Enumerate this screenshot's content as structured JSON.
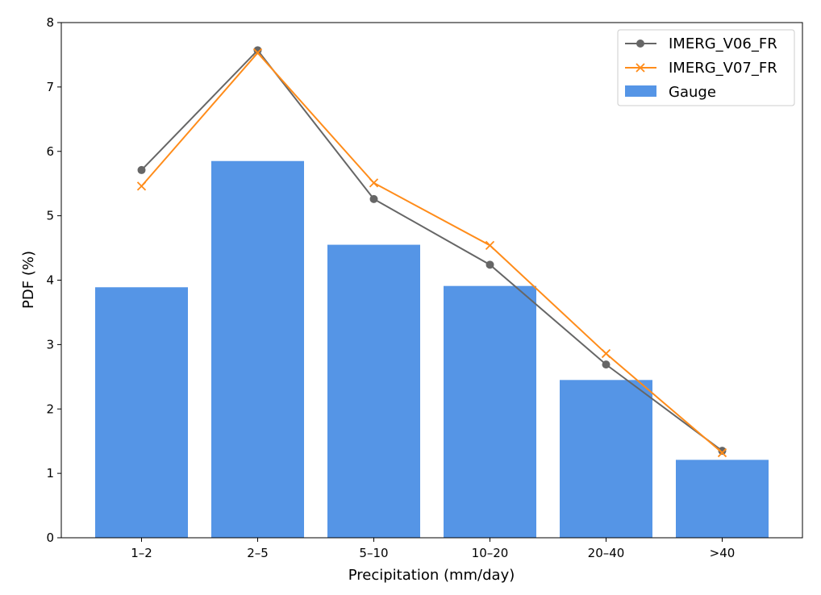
{
  "chart_data": {
    "type": "bar",
    "categories": [
      "1–2",
      "2–5",
      "5–10",
      "10–20",
      "20–40",
      ">40"
    ],
    "xlabel": "Precipitation (mm/day)",
    "ylabel": "PDF (%)",
    "ylim": [
      0,
      8
    ],
    "yticks": [
      "0",
      "1",
      "2",
      "3",
      "4",
      "5",
      "6",
      "7",
      "8"
    ],
    "grid": false,
    "legend_position": "top-right",
    "bar_series": {
      "name": "Gauge",
      "color": "#5595e6",
      "values": [
        3.89,
        5.85,
        4.55,
        3.91,
        2.45,
        1.21
      ]
    },
    "series": [
      {
        "name": "IMERG_V06_FR",
        "type": "line",
        "marker": "circle",
        "color": "#666666",
        "values": [
          5.71,
          7.57,
          5.26,
          4.24,
          2.69,
          1.35
        ]
      },
      {
        "name": "IMERG_V07_FR",
        "type": "line",
        "marker": "x",
        "color": "#ff8c1a",
        "values": [
          5.46,
          7.53,
          5.51,
          4.54,
          2.86,
          1.32
        ]
      }
    ]
  }
}
